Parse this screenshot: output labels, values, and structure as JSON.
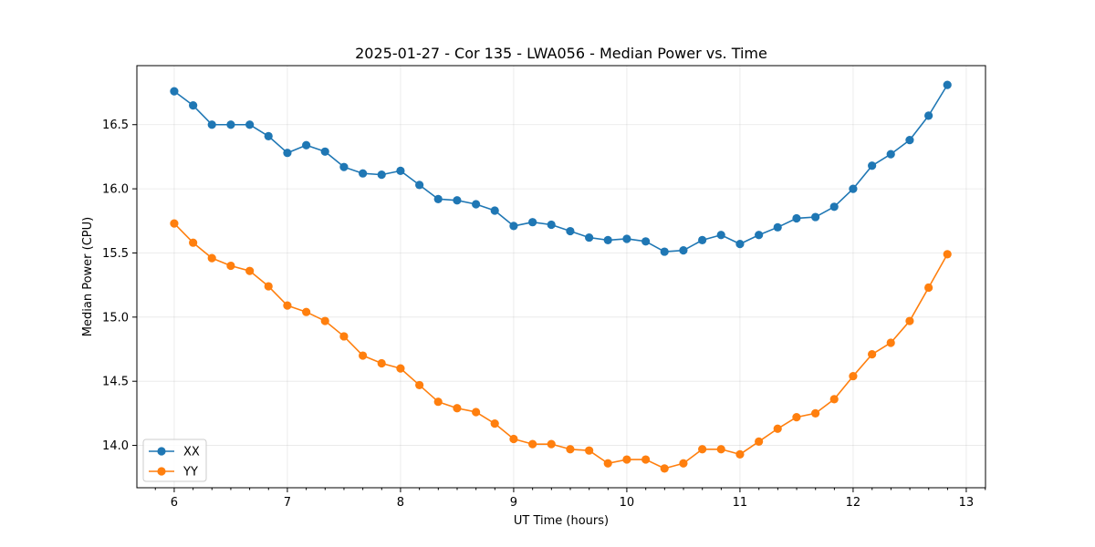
{
  "chart_data": {
    "type": "line",
    "title": "2025-01-27 - Cor 135 - LWA056 - Median Power vs. Time",
    "xlabel": "UT Time (hours)",
    "ylabel": "Median Power (CPU)",
    "xlim": [
      5.67,
      13.17
    ],
    "ylim": [
      13.67,
      16.96
    ],
    "x_ticks": [
      6,
      7,
      8,
      9,
      10,
      11,
      12,
      13
    ],
    "x_minor_step": 0.1667,
    "y_ticks": [
      "14.0",
      "14.5",
      "15.0",
      "15.5",
      "16.0",
      "16.5"
    ],
    "grid": true,
    "legend_location": "lower-left",
    "x": [
      6.0,
      6.167,
      6.333,
      6.5,
      6.667,
      6.833,
      7.0,
      7.167,
      7.333,
      7.5,
      7.667,
      7.833,
      8.0,
      8.167,
      8.333,
      8.5,
      8.667,
      8.833,
      9.0,
      9.167,
      9.333,
      9.5,
      9.667,
      9.833,
      10.0,
      10.167,
      10.333,
      10.5,
      10.667,
      10.833,
      11.0,
      11.167,
      11.333,
      11.5,
      11.667,
      11.833,
      12.0,
      12.167,
      12.333,
      12.5,
      12.667,
      12.833
    ],
    "series": [
      {
        "name": "XX",
        "color": "#1f77b4",
        "values": [
          16.76,
          16.65,
          16.5,
          16.5,
          16.5,
          16.41,
          16.28,
          16.34,
          16.29,
          16.17,
          16.12,
          16.11,
          16.14,
          16.03,
          15.92,
          15.91,
          15.88,
          15.83,
          15.71,
          15.74,
          15.72,
          15.67,
          15.62,
          15.6,
          15.61,
          15.59,
          15.51,
          15.52,
          15.6,
          15.64,
          15.57,
          15.64,
          15.7,
          15.77,
          15.78,
          15.86,
          16.0,
          16.18,
          16.27,
          16.38,
          16.57,
          16.81
        ]
      },
      {
        "name": "YY",
        "color": "#ff7f0e",
        "values": [
          15.73,
          15.58,
          15.46,
          15.4,
          15.36,
          15.24,
          15.09,
          15.04,
          14.97,
          14.85,
          14.7,
          14.64,
          14.6,
          14.47,
          14.34,
          14.29,
          14.26,
          14.17,
          14.05,
          14.01,
          14.01,
          13.97,
          13.96,
          13.86,
          13.89,
          13.89,
          13.82,
          13.86,
          13.97,
          13.97,
          13.93,
          14.03,
          14.13,
          14.22,
          14.25,
          14.36,
          14.54,
          14.71,
          14.8,
          14.97,
          15.23,
          15.49
        ]
      }
    ]
  }
}
